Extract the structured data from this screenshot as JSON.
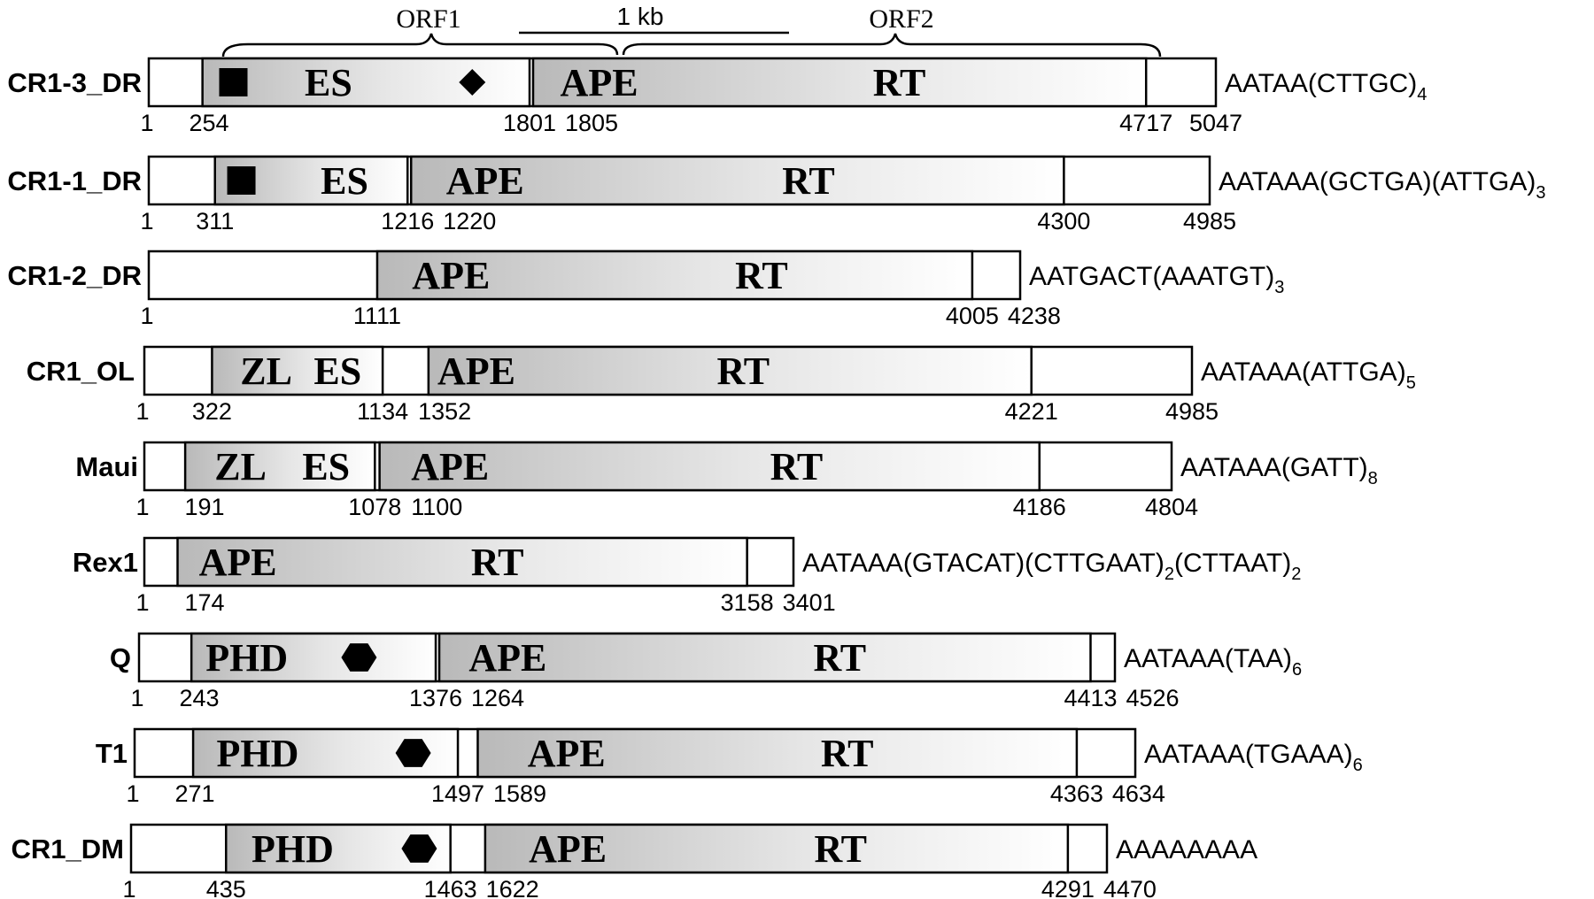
{
  "scale_bar": {
    "label": "1 kb"
  },
  "orf_labels": [
    "ORF1",
    "ORF2"
  ],
  "elements": [
    {
      "name": "CR1-3_DR",
      "length": 5047,
      "tail": "AATAA(CTTGC)",
      "tail_sub": "4",
      "orfs": [
        {
          "start": 254,
          "end": 1801,
          "domains": [
            {
              "label": "ES",
              "pos": 850
            }
          ],
          "motifs": [
            {
              "shape": "square",
              "pos": 400
            },
            {
              "shape": "diamond",
              "pos": 1530
            }
          ]
        },
        {
          "start": 1805,
          "end": 4717,
          "domains": [
            {
              "label": "APE",
              "pos": 2130
            },
            {
              "label": "RT",
              "pos": 3550
            }
          ],
          "motifs": []
        }
      ],
      "ticks": [
        {
          "label": "1"
        },
        {
          "label": "254"
        },
        {
          "label": "1801"
        },
        {
          "label": "1805"
        },
        {
          "label": "4717"
        },
        {
          "label": "5047"
        }
      ]
    },
    {
      "name": "CR1-1_DR",
      "length": 4985,
      "tail": "AATAAA(GCTGA)(ATTGA)",
      "tail_sub": "3",
      "orfs": [
        {
          "start": 311,
          "end": 1216,
          "domains": [
            {
              "label": "ES",
              "pos": 920
            }
          ],
          "motifs": [
            {
              "shape": "square",
              "pos": 435
            }
          ]
        },
        {
          "start": 1220,
          "end": 4300,
          "domains": [
            {
              "label": "APE",
              "pos": 1580
            },
            {
              "label": "RT",
              "pos": 3100
            }
          ],
          "motifs": []
        }
      ],
      "ticks": [
        {
          "label": "1"
        },
        {
          "label": "311"
        },
        {
          "label": "1216"
        },
        {
          "label": "1220"
        },
        {
          "label": "4300"
        },
        {
          "label": "4985"
        }
      ]
    },
    {
      "name": "CR1-2_DR",
      "length": 4238,
      "tail": "AATGACT(AAATGT)",
      "tail_sub": "3",
      "orfs": [
        {
          "start": 1111,
          "end": 4005,
          "domains": [
            {
              "label": "APE",
              "pos": 1470
            },
            {
              "label": "RT",
              "pos": 2980
            }
          ],
          "motifs": []
        }
      ],
      "ticks": [
        {
          "label": "1"
        },
        {
          "label": "1111"
        },
        {
          "label": "4005"
        },
        {
          "label": "4238"
        }
      ]
    },
    {
      "name": "CR1_OL",
      "length": 4985,
      "tail": "AATAAA(ATTGA)",
      "tail_sub": "5",
      "orfs": [
        {
          "start": 322,
          "end": 1134,
          "domains": [
            {
              "label": "ZL",
              "pos": 580
            },
            {
              "label": "ES",
              "pos": 920
            }
          ],
          "motifs": []
        },
        {
          "start": 1352,
          "end": 4221,
          "domains": [
            {
              "label": "APE",
              "pos": 1580
            },
            {
              "label": "RT",
              "pos": 2850
            }
          ],
          "motifs": []
        }
      ],
      "ticks": [
        {
          "label": "1"
        },
        {
          "label": "322"
        },
        {
          "label": "1134"
        },
        {
          "label": "1352"
        },
        {
          "label": "4221"
        },
        {
          "label": "4985"
        }
      ]
    },
    {
      "name": "Maui",
      "length": 4804,
      "tail": "AATAAA(GATT)",
      "tail_sub": "8",
      "orfs": [
        {
          "start": 191,
          "end": 1078,
          "domains": [
            {
              "label": "ZL",
              "pos": 450
            },
            {
              "label": "ES",
              "pos": 850
            }
          ],
          "motifs": []
        },
        {
          "start": 1100,
          "end": 4186,
          "domains": [
            {
              "label": "APE",
              "pos": 1430
            },
            {
              "label": "RT",
              "pos": 3050
            }
          ],
          "motifs": []
        }
      ],
      "ticks": [
        {
          "label": "1"
        },
        {
          "label": "191"
        },
        {
          "label": "1078"
        },
        {
          "label": "1100"
        },
        {
          "label": "4186"
        },
        {
          "label": "4804"
        }
      ]
    },
    {
      "name": "Rex1",
      "length": 3401,
      "tail": "AATAAA(GTACAT)(CTTGAAT)",
      "tail_sub": "2",
      "tail2": "(CTTAAT)",
      "tail2_sub": "2",
      "orfs": [
        {
          "start": 174,
          "end": 3158,
          "domains": [
            {
              "label": "APE",
              "pos": 490
            },
            {
              "label": "RT",
              "pos": 1850
            }
          ],
          "motifs": []
        }
      ],
      "ticks": [
        {
          "label": "1"
        },
        {
          "label": "174"
        },
        {
          "label": "3158"
        },
        {
          "label": "3401"
        }
      ]
    },
    {
      "name": "Q",
      "length": 4526,
      "tail": "AATAAA(TAA)",
      "tail_sub": "6",
      "orfs": [
        {
          "start": 243,
          "end": 1376,
          "domains": [
            {
              "label": "PHD",
              "pos": 500
            }
          ],
          "motifs": [
            {
              "shape": "hexagon",
              "pos": 1020
            }
          ]
        },
        {
          "start": 1264,
          "end": 4413,
          "domains": [
            {
              "label": "APE",
              "pos": 1710
            },
            {
              "label": "RT",
              "pos": 3250
            }
          ],
          "motifs": []
        }
      ],
      "ticks": [
        {
          "label": "1"
        },
        {
          "label": "243"
        },
        {
          "label": "1376"
        },
        {
          "label": "1264"
        },
        {
          "label": "4413"
        },
        {
          "label": "4526"
        }
      ]
    },
    {
      "name": "T1",
      "length": 4634,
      "tail": "AATAAA(TGAAA)",
      "tail_sub": "6",
      "orfs": [
        {
          "start": 271,
          "end": 1497,
          "domains": [
            {
              "label": "PHD",
              "pos": 570
            }
          ],
          "motifs": [
            {
              "shape": "hexagon",
              "pos": 1290
            }
          ]
        },
        {
          "start": 1589,
          "end": 4363,
          "domains": [
            {
              "label": "APE",
              "pos": 2000
            },
            {
              "label": "RT",
              "pos": 3300
            }
          ],
          "motifs": []
        }
      ],
      "ticks": [
        {
          "label": "1"
        },
        {
          "label": "271"
        },
        {
          "label": "1497"
        },
        {
          "label": "1589"
        },
        {
          "label": "4363"
        },
        {
          "label": "4634"
        }
      ]
    },
    {
      "name": "CR1_DM",
      "length": 4470,
      "tail": "AAAAAAAA",
      "tail_sub": "",
      "orfs": [
        {
          "start": 435,
          "end": 1463,
          "domains": [
            {
              "label": "PHD",
              "pos": 740
            }
          ],
          "motifs": [
            {
              "shape": "hexagon",
              "pos": 1320
            }
          ]
        },
        {
          "start": 1622,
          "end": 4291,
          "domains": [
            {
              "label": "APE",
              "pos": 2000
            },
            {
              "label": "RT",
              "pos": 3250
            }
          ],
          "motifs": []
        }
      ],
      "ticks": [
        {
          "label": "1"
        },
        {
          "label": "435"
        },
        {
          "label": "1463"
        },
        {
          "label": "1622"
        },
        {
          "label": "4291"
        },
        {
          "label": "4470"
        }
      ]
    }
  ]
}
